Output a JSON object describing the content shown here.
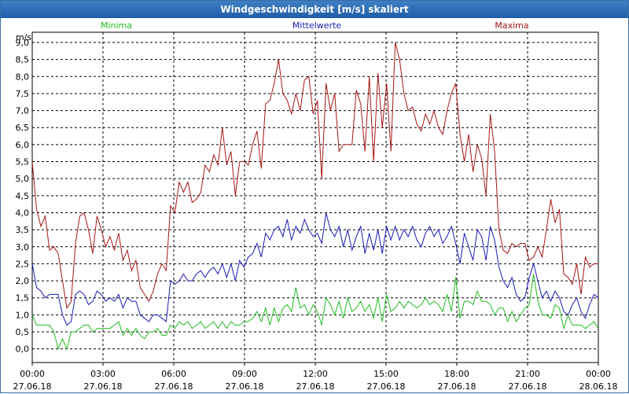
{
  "window": {
    "title": "Windgeschwindigkeit [m/s] skaliert"
  },
  "colors": {
    "min": "#22bb22",
    "mean": "#1a1ab8",
    "max": "#a51616",
    "grid": "#000000",
    "title_bg": "#2a68b0"
  },
  "chart_data": {
    "type": "line",
    "title": "Windgeschwindigkeit [m/s] skaliert",
    "ylabel": "m/s",
    "xlabel": "",
    "ylim": [
      -0.4,
      9.3
    ],
    "y_ticks": [
      "0,0",
      "0,5",
      "1,0",
      "1,5",
      "2,0",
      "2,5",
      "3,0",
      "3,5",
      "4,0",
      "4,5",
      "5,0",
      "5,5",
      "6,0",
      "6,5",
      "7,0",
      "7,5",
      "8,0",
      "8,5",
      "9,0"
    ],
    "y_tick_values": [
      0,
      0.5,
      1,
      1.5,
      2,
      2.5,
      3,
      3.5,
      4,
      4.5,
      5,
      5.5,
      6,
      6.5,
      7,
      7.5,
      8,
      8.5,
      9
    ],
    "xlim": [
      0,
      24
    ],
    "x_tick_values": [
      0,
      3,
      6,
      9,
      12,
      15,
      18,
      21,
      24
    ],
    "x_tick_times": [
      "00:00",
      "03:00",
      "06:00",
      "09:00",
      "12:00",
      "15:00",
      "18:00",
      "21:00",
      "00:00"
    ],
    "x_tick_dates": [
      "27.06.18",
      "27.06.18",
      "27.06.18",
      "27.06.18",
      "27.06.18",
      "27.06.18",
      "27.06.18",
      "27.06.18",
      "28.06.18"
    ],
    "grid": true,
    "legend": {
      "placement": "top",
      "entries": [
        "Minima",
        "Mittelwerte",
        "Maxima"
      ]
    },
    "series": [
      {
        "name": "Maxima",
        "values": [
          5.5,
          4.1,
          3.6,
          3.9,
          2.9,
          3.0,
          2.8,
          2.0,
          1.2,
          1.4,
          3.1,
          3.9,
          4.0,
          3.5,
          2.8,
          3.9,
          3.5,
          3.0,
          3.3,
          2.9,
          3.4,
          2.6,
          2.9,
          2.3,
          2.6,
          1.8,
          1.6,
          1.4,
          1.7,
          2.2,
          2.5,
          2.3,
          4.2,
          4.0,
          4.9,
          4.6,
          4.9,
          4.3,
          4.4,
          4.6,
          5.4,
          5.2,
          5.7,
          5.4,
          6.5,
          5.4,
          5.8,
          4.5,
          5.5,
          5.5,
          5.4,
          6.0,
          6.4,
          5.3,
          7.2,
          7.3,
          7.8,
          8.5,
          7.5,
          7.3,
          6.9,
          7.5,
          7.0,
          7.9,
          8.0,
          6.9,
          7.3,
          5.0,
          7.8,
          7.0,
          7.5,
          5.8,
          6.0,
          6.0,
          6.0,
          7.6,
          7.2,
          5.8,
          8.0,
          5.5,
          8.1,
          6.5,
          7.8,
          5.8,
          9.0,
          8.5,
          7.5,
          7.0,
          7.1,
          6.6,
          6.4,
          6.9,
          6.6,
          7.0,
          6.5,
          6.3,
          7.0,
          7.5,
          7.8,
          6.3,
          5.5,
          6.3,
          5.2,
          6.0,
          5.6,
          4.5,
          6.9,
          5.8,
          3.5,
          2.9,
          2.8,
          3.1,
          3.0,
          3.1,
          3.1,
          2.6,
          2.7,
          3.0,
          2.7,
          3.5,
          4.4,
          3.7,
          4.1,
          2.2,
          2.1,
          1.9,
          2.5,
          1.6,
          2.7,
          2.4,
          2.5,
          2.5
        ]
      },
      {
        "name": "Mittelwerte",
        "values": [
          2.5,
          1.8,
          1.7,
          1.5,
          1.6,
          1.6,
          1.6,
          1.0,
          0.7,
          0.8,
          1.6,
          1.7,
          1.6,
          1.3,
          1.4,
          1.7,
          1.6,
          1.4,
          1.5,
          1.4,
          1.6,
          1.2,
          1.5,
          1.4,
          1.4,
          1.0,
          0.9,
          0.8,
          1.0,
          1.0,
          0.9,
          0.8,
          2.0,
          1.9,
          2.0,
          2.2,
          2.0,
          2.0,
          2.2,
          2.3,
          2.1,
          2.3,
          2.4,
          2.2,
          2.5,
          2.1,
          2.5,
          2.0,
          2.6,
          2.4,
          2.7,
          2.8,
          3.1,
          2.7,
          3.4,
          3.2,
          3.5,
          3.6,
          3.3,
          3.8,
          3.2,
          3.6,
          3.4,
          3.8,
          3.5,
          3.3,
          3.4,
          3.1,
          4.0,
          3.5,
          3.3,
          3.6,
          3.0,
          3.5,
          2.9,
          3.3,
          3.6,
          2.8,
          3.4,
          2.9,
          3.5,
          2.8,
          3.6,
          3.2,
          3.6,
          3.2,
          3.5,
          3.3,
          3.6,
          3.2,
          3.0,
          3.4,
          3.6,
          3.3,
          3.5,
          3.1,
          3.3,
          3.6,
          3.1,
          2.5,
          3.4,
          3.0,
          2.6,
          3.5,
          3.3,
          2.6,
          3.6,
          3.2,
          2.4,
          2.0,
          1.8,
          2.1,
          1.6,
          1.4,
          1.5,
          2.1,
          2.5,
          2.0,
          1.5,
          1.7,
          1.4,
          1.7,
          1.5,
          1.1,
          1.0,
          1.3,
          1.5,
          1.1,
          0.9,
          1.3,
          1.6,
          1.5
        ]
      },
      {
        "name": "Minima",
        "values": [
          1.0,
          0.7,
          0.7,
          0.7,
          0.7,
          0.5,
          0.0,
          0.3,
          0.0,
          0.5,
          0.5,
          0.6,
          0.7,
          0.7,
          0.5,
          0.6,
          0.6,
          0.6,
          0.6,
          0.7,
          0.8,
          0.4,
          0.6,
          0.4,
          0.6,
          0.4,
          0.3,
          0.5,
          0.5,
          0.6,
          0.4,
          0.4,
          0.7,
          0.6,
          0.8,
          0.7,
          0.8,
          0.6,
          0.7,
          0.8,
          0.6,
          0.7,
          0.8,
          0.6,
          0.8,
          0.6,
          0.8,
          0.7,
          0.7,
          0.8,
          0.8,
          0.9,
          1.1,
          0.8,
          1.2,
          0.7,
          1.2,
          0.8,
          1.2,
          1.3,
          1.1,
          1.8,
          1.2,
          1.3,
          1.0,
          1.3,
          1.1,
          0.7,
          1.5,
          1.3,
          1.0,
          1.4,
          0.9,
          1.5,
          1.1,
          1.2,
          1.4,
          1.1,
          1.3,
          0.9,
          1.5,
          0.8,
          1.6,
          1.1,
          1.2,
          1.4,
          1.2,
          1.4,
          1.3,
          1.2,
          1.3,
          1.5,
          1.3,
          1.4,
          1.3,
          1.1,
          1.6,
          1.1,
          2.1,
          0.9,
          1.4,
          1.4,
          1.3,
          1.7,
          1.4,
          1.4,
          1.3,
          1.0,
          1.2,
          1.2,
          0.8,
          1.1,
          0.8,
          1.0,
          1.2,
          1.3,
          2.2,
          1.4,
          1.0,
          1.0,
          0.9,
          1.3,
          1.2,
          0.6,
          1.0,
          0.7,
          0.7,
          0.7,
          0.6,
          0.7,
          0.8,
          0.6
        ]
      }
    ]
  }
}
